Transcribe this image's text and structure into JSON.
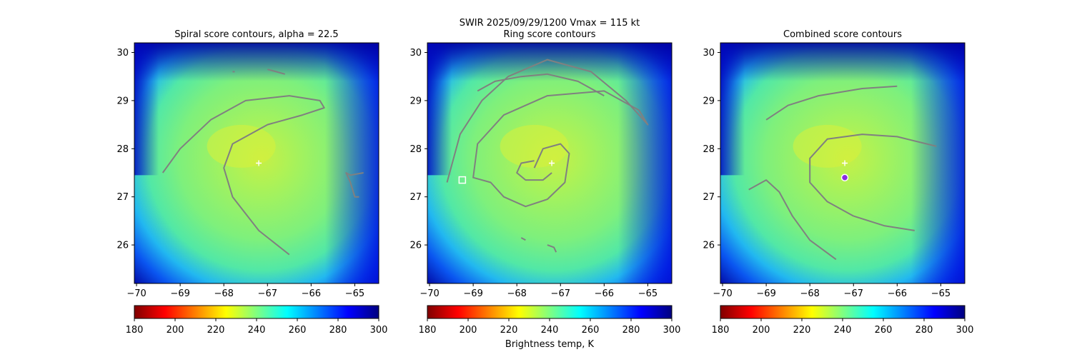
{
  "suptitle": "SWIR  2025/09/29/1200    Vmax = 115 kt",
  "colorbar_label": "Brightness temp, K",
  "colormap_stops": [
    "#800000",
    "#ff0000",
    "#ff8000",
    "#ffff00",
    "#80ff80",
    "#00ffff",
    "#0080ff",
    "#0000ff",
    "#000080"
  ],
  "colors": {
    "contour": "#808080",
    "center_marker": "#ffffff",
    "combined_center_fill": "#8a2be2"
  },
  "chart_data": [
    {
      "type": "heatmap",
      "title": "Spiral score contours, alpha = 22.5",
      "x_range": [
        -70.05,
        -64.45
      ],
      "y_range": [
        25.2,
        30.2
      ],
      "x_ticks": [
        "−70",
        "−69",
        "−68",
        "−67",
        "−66",
        "−65"
      ],
      "y_ticks": [
        "26",
        "27",
        "28",
        "29",
        "30"
      ],
      "color_range": [
        180,
        300
      ],
      "colorbar_ticks": [
        "180",
        "200",
        "220",
        "240",
        "260",
        "280",
        "300"
      ],
      "storm_center": [
        -67.2,
        27.7
      ],
      "contours": [
        [
          [
            -69.4,
            27.5
          ],
          [
            -69.0,
            28.0
          ],
          [
            -68.3,
            28.6
          ],
          [
            -67.5,
            29.0
          ],
          [
            -66.5,
            29.1
          ],
          [
            -65.8,
            29.0
          ],
          [
            -65.7,
            28.85
          ],
          [
            -66.2,
            28.7
          ],
          [
            -67.0,
            28.5
          ],
          [
            -67.8,
            28.1
          ],
          [
            -68.0,
            27.6
          ],
          [
            -67.8,
            27.0
          ],
          [
            -67.2,
            26.3
          ],
          [
            -66.5,
            25.8
          ]
        ],
        [
          [
            -64.8,
            27.5
          ],
          [
            -65.1,
            27.45
          ],
          [
            -65.2,
            27.5
          ],
          [
            -65.1,
            27.3
          ],
          [
            -65.0,
            27.0
          ],
          [
            -64.9,
            27.0
          ]
        ],
        [
          [
            -67.0,
            29.65
          ],
          [
            -66.8,
            29.6
          ],
          [
            -66.6,
            29.55
          ]
        ],
        [
          [
            -67.8,
            29.6
          ],
          [
            -67.75,
            29.6
          ]
        ]
      ],
      "center_markers": []
    },
    {
      "type": "heatmap",
      "title": "Ring score contours",
      "x_range": [
        -70.05,
        -64.45
      ],
      "y_range": [
        25.2,
        30.2
      ],
      "x_ticks": [
        "−70",
        "−69",
        "−68",
        "−67",
        "−66",
        "−65"
      ],
      "y_ticks": [
        "26",
        "27",
        "28",
        "29",
        "30"
      ],
      "color_range": [
        180,
        300
      ],
      "colorbar_ticks": [
        "180",
        "200",
        "220",
        "240",
        "260",
        "280",
        "300"
      ],
      "storm_center": [
        -67.2,
        27.7
      ],
      "contours": [
        [
          [
            -69.6,
            27.3
          ],
          [
            -69.3,
            28.3
          ],
          [
            -68.8,
            29.0
          ],
          [
            -68.2,
            29.5
          ],
          [
            -67.3,
            29.85
          ],
          [
            -66.3,
            29.6
          ],
          [
            -65.5,
            29.0
          ],
          [
            -65.0,
            28.5
          ],
          [
            -65.2,
            28.8
          ],
          [
            -66.0,
            29.2
          ],
          [
            -67.3,
            29.1
          ],
          [
            -68.3,
            28.7
          ],
          [
            -68.9,
            28.1
          ],
          [
            -69.0,
            27.4
          ],
          [
            -68.6,
            27.3
          ],
          [
            -68.3,
            27.0
          ],
          [
            -67.8,
            26.8
          ],
          [
            -67.3,
            26.95
          ],
          [
            -66.9,
            27.3
          ],
          [
            -66.8,
            27.9
          ],
          [
            -67.0,
            28.1
          ],
          [
            -67.4,
            28.0
          ],
          [
            -67.6,
            27.6
          ]
        ],
        [
          [
            -68.9,
            29.2
          ],
          [
            -68.5,
            29.4
          ],
          [
            -67.9,
            29.5
          ],
          [
            -67.3,
            29.55
          ],
          [
            -66.6,
            29.4
          ],
          [
            -66.0,
            29.1
          ]
        ],
        [
          [
            -67.6,
            27.75
          ],
          [
            -67.9,
            27.7
          ],
          [
            -68.0,
            27.5
          ],
          [
            -67.8,
            27.35
          ],
          [
            -67.4,
            27.35
          ],
          [
            -67.2,
            27.5
          ]
        ],
        [
          [
            -67.3,
            26.0
          ],
          [
            -67.15,
            25.95
          ],
          [
            -67.1,
            25.85
          ]
        ],
        [
          [
            -67.9,
            26.15
          ],
          [
            -67.8,
            26.1
          ]
        ]
      ],
      "center_markers": [
        {
          "lon": -69.25,
          "lat": 27.35,
          "shape": "square"
        }
      ]
    },
    {
      "type": "heatmap",
      "title": "Combined score contours",
      "x_range": [
        -70.05,
        -64.45
      ],
      "y_range": [
        25.2,
        30.2
      ],
      "x_ticks": [
        "−70",
        "−69",
        "−68",
        "−67",
        "−66",
        "−65"
      ],
      "y_ticks": [
        "26",
        "27",
        "28",
        "29",
        "30"
      ],
      "color_range": [
        180,
        300
      ],
      "colorbar_ticks": [
        "180",
        "200",
        "220",
        "240",
        "260",
        "280",
        "300"
      ],
      "storm_center": [
        -67.2,
        27.7
      ],
      "contours": [
        [
          [
            -69.0,
            28.6
          ],
          [
            -68.5,
            28.9
          ],
          [
            -67.8,
            29.1
          ],
          [
            -66.8,
            29.25
          ],
          [
            -66.0,
            29.3
          ]
        ],
        [
          [
            -67.0,
            26.6
          ],
          [
            -67.6,
            26.9
          ],
          [
            -68.0,
            27.3
          ],
          [
            -68.0,
            27.8
          ],
          [
            -67.6,
            28.2
          ],
          [
            -66.8,
            28.3
          ],
          [
            -66.0,
            28.25
          ],
          [
            -65.1,
            28.05
          ]
        ],
        [
          [
            -69.4,
            27.15
          ],
          [
            -69.0,
            27.35
          ],
          [
            -68.7,
            27.1
          ],
          [
            -68.4,
            26.6
          ],
          [
            -68.0,
            26.1
          ],
          [
            -67.4,
            25.7
          ]
        ],
        [
          [
            -67.0,
            26.6
          ],
          [
            -66.3,
            26.4
          ],
          [
            -65.6,
            26.3
          ]
        ]
      ],
      "center_markers": [
        {
          "lon": -67.2,
          "lat": 27.4,
          "shape": "circle"
        }
      ]
    }
  ]
}
